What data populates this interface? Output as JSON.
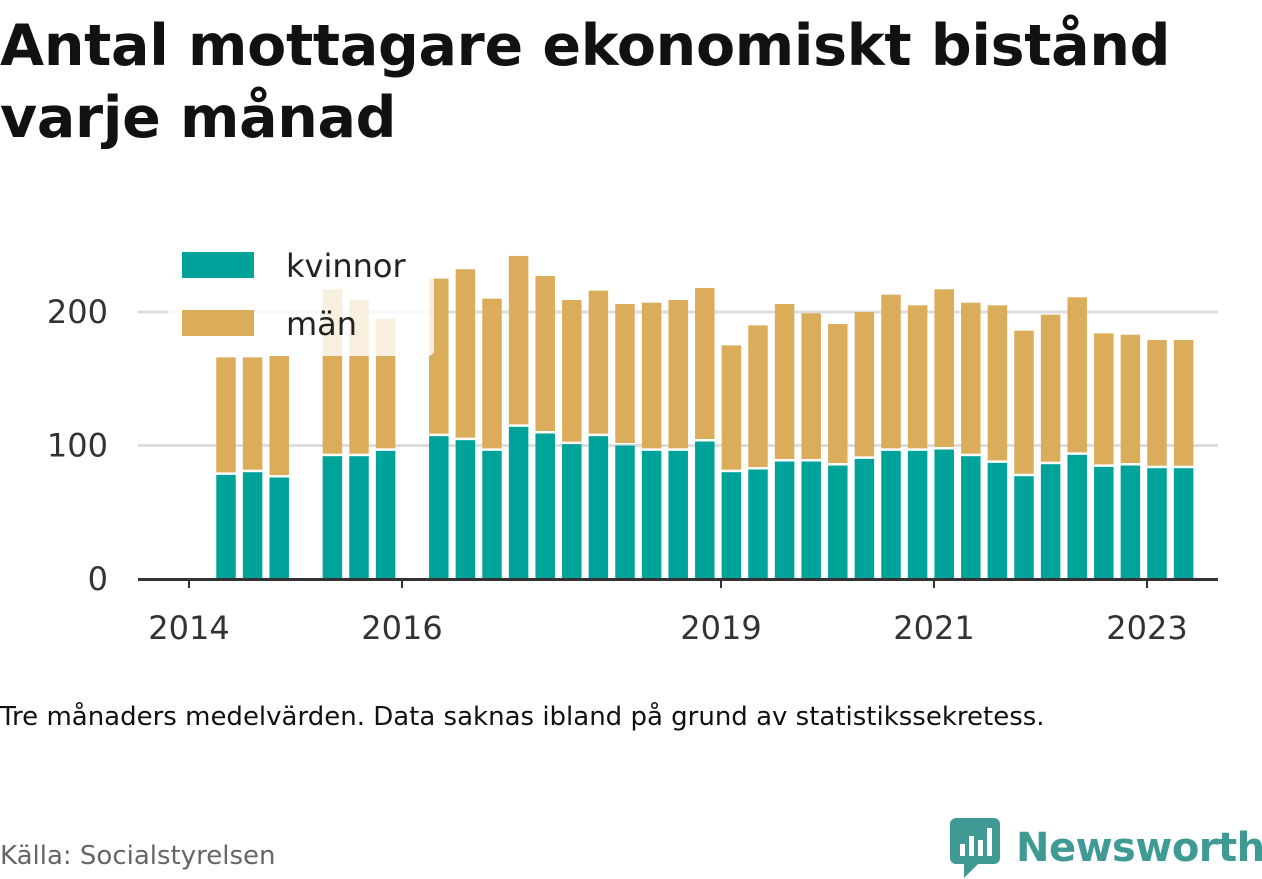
{
  "title": "Antal mottagare ekonomiskt bistånd varje månad",
  "note": "Tre månaders medelvärden. Data saknas ibland på grund av statistikssekretess.",
  "source": "Källa: Socialstyrelsen",
  "brand": {
    "name": "Newsworthy",
    "icon": "bar-chart-speech-bubble-icon"
  },
  "colors": {
    "kvinnor": "#00a39a",
    "man": "#dbad5a",
    "grid": "#dddddd",
    "axis": "#333333"
  },
  "chart_data": {
    "type": "bar",
    "stacked": true,
    "legend_position": "top-left",
    "grid": true,
    "x_ticks": [
      "2014",
      "2016",
      "2019",
      "2021",
      "2023"
    ],
    "y_ticks": [
      "0",
      "100",
      "200"
    ],
    "ylim": [
      0,
      245
    ],
    "categories": [
      "2014-Q2",
      "2014-Q3",
      "2014-Q4",
      "2015-Q1",
      "2015-Q2",
      "2015-Q3",
      "2015-Q4",
      "2016-Q1",
      "2016-Q2",
      "2016-Q3",
      "2016-Q4",
      "2017-Q1",
      "2017-Q2",
      "2017-Q3",
      "2017-Q4",
      "2018-Q1",
      "2018-Q2",
      "2018-Q3",
      "2018-Q4",
      "2019-Q1",
      "2019-Q2",
      "2019-Q3",
      "2019-Q4",
      "2020-Q1",
      "2020-Q2",
      "2020-Q3",
      "2020-Q4",
      "2021-Q1",
      "2021-Q2",
      "2021-Q3",
      "2021-Q4",
      "2022-Q1",
      "2022-Q2",
      "2022-Q3",
      "2022-Q4",
      "2023-Q1",
      "2023-Q2"
    ],
    "series": [
      {
        "name": "kvinnor",
        "values": [
          78,
          80,
          76,
          null,
          92,
          92,
          96,
          null,
          107,
          104,
          96,
          114,
          109,
          101,
          107,
          100,
          96,
          96,
          103,
          80,
          82,
          88,
          88,
          85,
          90,
          96,
          96,
          97,
          92,
          87,
          77,
          86,
          93,
          84,
          85,
          83,
          83
        ]
      },
      {
        "name": "män",
        "values": [
          88,
          86,
          91,
          null,
          125,
          117,
          99,
          null,
          118,
          128,
          114,
          128,
          118,
          108,
          109,
          106,
          111,
          113,
          115,
          95,
          108,
          118,
          111,
          106,
          110,
          117,
          109,
          120,
          115,
          118,
          109,
          112,
          118,
          100,
          98,
          96,
          96
        ]
      }
    ]
  }
}
